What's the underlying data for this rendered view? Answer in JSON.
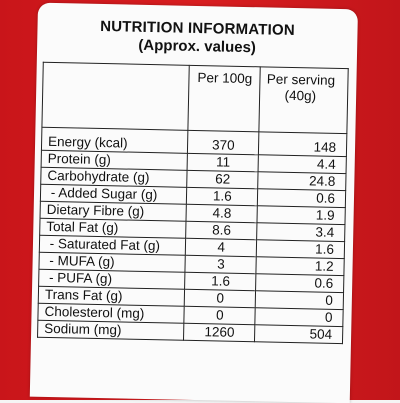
{
  "title": "NUTRITION INFORMATION",
  "subtitle": "(Approx. values)",
  "columns": {
    "per_100g": "Per 100g",
    "per_serving_line1": "Per serving",
    "per_serving_line2": "(40g)"
  },
  "rows": [
    {
      "name": "Energy (kcal)",
      "per_100g": "370",
      "per_serving": "148"
    },
    {
      "name": "Protein (g)",
      "per_100g": "11",
      "per_serving": "4.4"
    },
    {
      "name": "Carbohydrate (g)",
      "per_100g": "62",
      "per_serving": "24.8"
    },
    {
      "name": " - Added Sugar (g)",
      "per_100g": "1.6",
      "per_serving": "0.6"
    },
    {
      "name": "Dietary Fibre (g)",
      "per_100g": "4.8",
      "per_serving": "1.9"
    },
    {
      "name": "Total Fat (g)",
      "per_100g": "8.6",
      "per_serving": "3.4"
    },
    {
      "name": " - Saturated Fat (g)",
      "per_100g": "4",
      "per_serving": "1.6"
    },
    {
      "name": " - MUFA (g)",
      "per_100g": "3",
      "per_serving": "1.2"
    },
    {
      "name": " - PUFA (g)",
      "per_100g": "1.6",
      "per_serving": "0.6"
    },
    {
      "name": "Trans Fat (g)",
      "per_100g": "0",
      "per_serving": "0"
    },
    {
      "name": "Cholesterol (mg)",
      "per_100g": "0",
      "per_serving": "0"
    },
    {
      "name": "Sodium (mg)",
      "per_100g": "1260",
      "per_serving": "504"
    }
  ],
  "colors": {
    "packaging_red": "#d81e20",
    "label_background": "#fbfbfb",
    "text": "#111111"
  }
}
